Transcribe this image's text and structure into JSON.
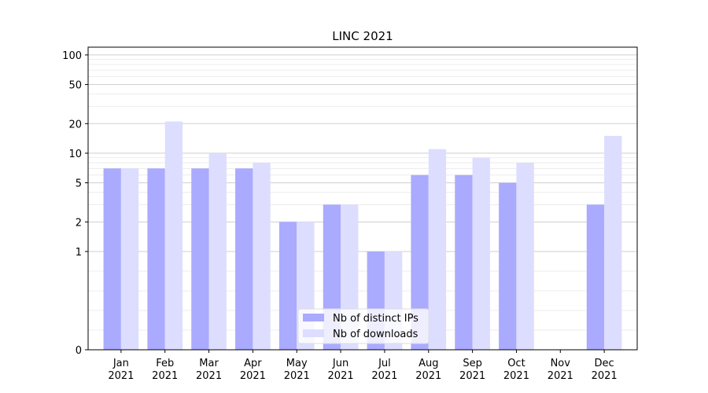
{
  "chart_data": {
    "type": "bar",
    "title": "LINC 2021",
    "xlabel": "",
    "ylabel": "",
    "y_scale": "symlog",
    "ylim": [
      0,
      120
    ],
    "y_ticks": [
      0,
      1,
      2,
      5,
      10,
      20,
      50,
      100
    ],
    "categories": [
      [
        "Jan",
        "2021"
      ],
      [
        "Feb",
        "2021"
      ],
      [
        "Mar",
        "2021"
      ],
      [
        "Apr",
        "2021"
      ],
      [
        "May",
        "2021"
      ],
      [
        "Jun",
        "2021"
      ],
      [
        "Jul",
        "2021"
      ],
      [
        "Aug",
        "2021"
      ],
      [
        "Sep",
        "2021"
      ],
      [
        "Oct",
        "2021"
      ],
      [
        "Nov",
        "2021"
      ],
      [
        "Dec",
        "2021"
      ]
    ],
    "series": [
      {
        "name": "Nb of distinct IPs",
        "color": "#aaaaff",
        "values": [
          7,
          7,
          7,
          7,
          2,
          3,
          1,
          6,
          6,
          5,
          0,
          3
        ]
      },
      {
        "name": "Nb of downloads",
        "color": "#ddddff",
        "values": [
          7,
          21,
          10,
          8,
          2,
          3,
          1,
          11,
          9,
          8,
          0,
          15
        ]
      }
    ],
    "grid": "horizontal",
    "legend_position": "bottom-center"
  }
}
